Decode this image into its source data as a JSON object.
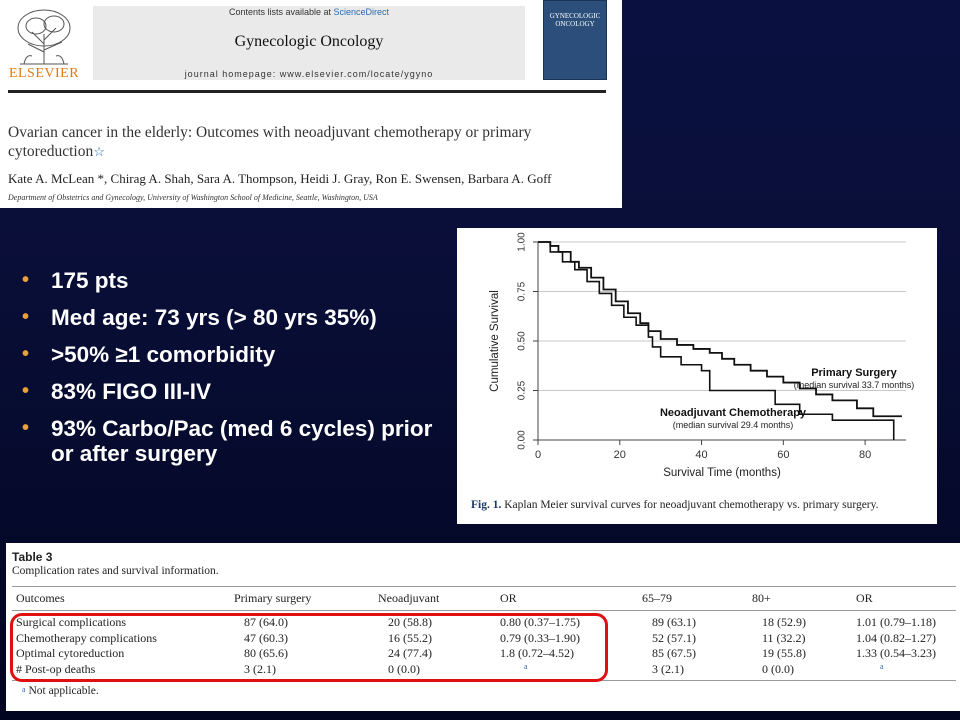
{
  "article": {
    "contents_prefix": "Contents lists available at ",
    "contents_link": "ScienceDirect",
    "journal": "Gynecologic Oncology",
    "homepage": "journal homepage: www.elsevier.com/locate/ygyno",
    "publisher": "ELSEVIER",
    "cover_title_1": "GYNECOLOGIC",
    "cover_title_2": "ONCOLOGY",
    "title": "Ovarian cancer in the elderly: Outcomes with neoadjuvant chemotherapy or primary cytoreduction",
    "title_mark": "☆",
    "authors": "Kate A. McLean *, Chirag A. Shah, Sara A. Thompson, Heidi J. Gray, Ron E. Swensen, Barbara A. Goff",
    "affiliation": "Department of Obstetrics and Gynecology, University of Washington School of Medicine, Seattle, Washington, USA"
  },
  "bullets": [
    {
      "text": "175 pts"
    },
    {
      "text": "Med age: 73 yrs (> 80 yrs 35%)"
    },
    {
      "text": ">50% ≥1 comorbidity"
    },
    {
      "text": "83% FIGO III-IV"
    },
    {
      "text": "93% Carbo/Pac (med 6 cycles) prior or after surgery"
    }
  ],
  "bullet_color": "#e8a23a",
  "chart_data": {
    "type": "line",
    "xlabel": "Survival Time (months)",
    "ylabel": "Cumulative Survival",
    "xlim": [
      0,
      90
    ],
    "ylim": [
      0,
      1
    ],
    "x_ticks": [
      "0",
      "20",
      "40",
      "60",
      "80"
    ],
    "y_ticks": [
      "0.00",
      "0.25",
      "0.50",
      "0.75",
      "1.00"
    ],
    "grid": true,
    "series": [
      {
        "name": "Primary Surgery",
        "note": "(median survival 33.7 months)",
        "points": [
          [
            0,
            1.0
          ],
          [
            3,
            0.98
          ],
          [
            5,
            0.95
          ],
          [
            8,
            0.9
          ],
          [
            10,
            0.87
          ],
          [
            13,
            0.82
          ],
          [
            16,
            0.76
          ],
          [
            19,
            0.7
          ],
          [
            22,
            0.64
          ],
          [
            25,
            0.59
          ],
          [
            27,
            0.55
          ],
          [
            30,
            0.51
          ],
          [
            34,
            0.48
          ],
          [
            38,
            0.46
          ],
          [
            42,
            0.44
          ],
          [
            45,
            0.41
          ],
          [
            48,
            0.38
          ],
          [
            52,
            0.35
          ],
          [
            56,
            0.32
          ],
          [
            60,
            0.29
          ],
          [
            64,
            0.26
          ],
          [
            68,
            0.23
          ],
          [
            72,
            0.2
          ],
          [
            78,
            0.16
          ],
          [
            82,
            0.12
          ],
          [
            89,
            0.12
          ]
        ]
      },
      {
        "name": "Neoadjuvant Chemotherapy",
        "note": "(median survival 29.4 months)",
        "points": [
          [
            0,
            1.0
          ],
          [
            3,
            0.95
          ],
          [
            6,
            0.9
          ],
          [
            9,
            0.86
          ],
          [
            12,
            0.8
          ],
          [
            15,
            0.74
          ],
          [
            18,
            0.68
          ],
          [
            21,
            0.62
          ],
          [
            24,
            0.58
          ],
          [
            27,
            0.52
          ],
          [
            28,
            0.47
          ],
          [
            30,
            0.42
          ],
          [
            35,
            0.38
          ],
          [
            40,
            0.35
          ],
          [
            42,
            0.25
          ],
          [
            50,
            0.25
          ],
          [
            58,
            0.18
          ],
          [
            64,
            0.13
          ],
          [
            72,
            0.1
          ],
          [
            85,
            0.1
          ],
          [
            87,
            0.05
          ],
          [
            87,
            0.0
          ]
        ]
      }
    ]
  },
  "figure_caption_label": "Fig. 1.",
  "figure_caption_text": " Kaplan Meier survival curves for neoadjuvant chemotherapy vs. primary surgery.",
  "table": {
    "label": "Table 3",
    "subtitle": "Complication rates and survival information.",
    "headers": [
      "Outcomes",
      "Primary surgery",
      "Neoadjuvant",
      "OR",
      "65–79",
      "80+",
      "OR"
    ],
    "rows": [
      [
        "Surgical complications",
        "87 (64.0)",
        "20 (58.8)",
        "0.80 (0.37–1.75)",
        "89 (63.1)",
        "18 (52.9)",
        "1.01 (0.79–1.18)"
      ],
      [
        "Chemotherapy complications",
        "47 (60.3)",
        "16 (55.2)",
        "0.79 (0.33–1.90)",
        "52 (57.1)",
        "11 (32.2)",
        "1.04 (0.82–1.27)"
      ],
      [
        "Optimal cytoreduction",
        "80 (65.6)",
        "24 (77.4)",
        "1.8 (0.72–4.52)",
        "85 (67.5)",
        "19 (55.8)",
        "1.33 (0.54–3.23)"
      ],
      [
        "# Post-op deaths",
        "3 (2.1)",
        "0 (0.0)",
        "a",
        "3 (2.1)",
        "0 (0.0)",
        "a"
      ]
    ],
    "footnote_mark": "a",
    "footnote": " Not applicable.",
    "highlight_color": "#e01010"
  }
}
